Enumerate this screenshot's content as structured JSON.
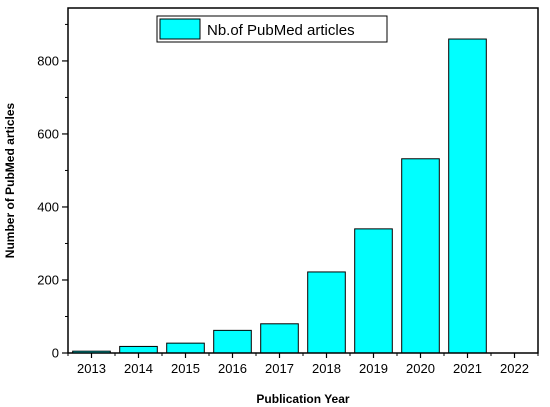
{
  "chart_data": {
    "type": "bar",
    "categories": [
      "2013",
      "2014",
      "2015",
      "2016",
      "2017",
      "2018",
      "2019",
      "2020",
      "2021"
    ],
    "series": [
      {
        "name": "Nb.of PubMed articles",
        "values": [
          5,
          18,
          27,
          62,
          80,
          222,
          340,
          532,
          860
        ],
        "color": "#00ffff"
      }
    ],
    "x_ticks": [
      "2013",
      "2014",
      "2015",
      "2016",
      "2017",
      "2018",
      "2019",
      "2020",
      "2021",
      "2022"
    ],
    "y_ticks": [
      0,
      200,
      400,
      600,
      800
    ],
    "xlabel": "Publication Year",
    "ylabel": "Number of PubMed articles",
    "ylim": [
      0,
      945
    ],
    "grid": false,
    "legend_position": "top-center"
  }
}
